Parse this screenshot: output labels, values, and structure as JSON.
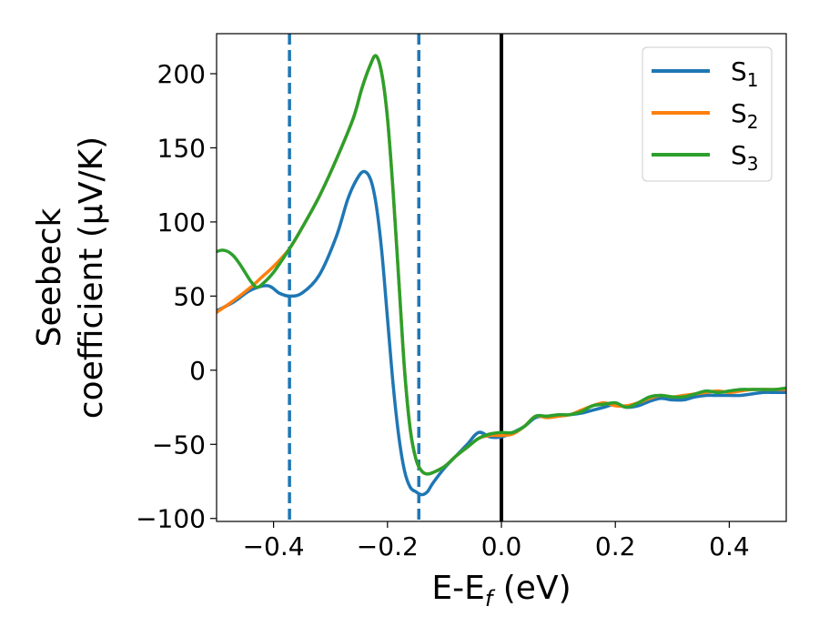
{
  "chart_data": {
    "type": "line",
    "xlabel": "E-E",
    "xlabel_sub": "f",
    "xlabel_unit": " (eV)",
    "ylabel_line1": "Seebeck",
    "ylabel_line2": "coefficient  (μV/K)",
    "xlim": [
      -0.5,
      0.5
    ],
    "ylim": [
      -102,
      227
    ],
    "xticks": [
      -0.4,
      -0.2,
      0.0,
      0.2,
      0.4
    ],
    "xtick_labels": [
      "−0.4",
      "−0.2",
      "0.0",
      "0.2",
      "0.4"
    ],
    "yticks": [
      -100,
      -50,
      0,
      50,
      100,
      150,
      200
    ],
    "ytick_labels": [
      "−100",
      "−50",
      "0",
      "50",
      "100",
      "150",
      "200"
    ],
    "grid": false,
    "legend_position": "top-right",
    "vlines": [
      {
        "x": -0.372,
        "style": "dashed",
        "color": "#1f77b4"
      },
      {
        "x": -0.145,
        "style": "dashed",
        "color": "#1f77b4"
      },
      {
        "x": 0.0,
        "style": "solid",
        "color": "#000000"
      }
    ],
    "series": [
      {
        "name": "S",
        "sub": "1",
        "color": "#1f77b4",
        "x": [
          -0.5,
          -0.47,
          -0.44,
          -0.41,
          -0.39,
          -0.372,
          -0.35,
          -0.32,
          -0.29,
          -0.27,
          -0.255,
          -0.242,
          -0.23,
          -0.22,
          -0.21,
          -0.2,
          -0.19,
          -0.18,
          -0.17,
          -0.16,
          -0.15,
          -0.14,
          -0.13,
          -0.12,
          -0.1,
          -0.08,
          -0.06,
          -0.04,
          -0.02,
          0.0,
          0.02,
          0.04,
          0.06,
          0.08,
          0.1,
          0.12,
          0.14,
          0.16,
          0.18,
          0.2,
          0.22,
          0.24,
          0.26,
          0.28,
          0.3,
          0.32,
          0.34,
          0.36,
          0.38,
          0.4,
          0.42,
          0.44,
          0.46,
          0.48,
          0.5
        ],
        "y": [
          40,
          46,
          54,
          57,
          52,
          50,
          52,
          64,
          90,
          115,
          128,
          134,
          129,
          112,
          80,
          35,
          -10,
          -45,
          -68,
          -79,
          -82,
          -84,
          -82,
          -76,
          -66,
          -58,
          -50,
          -42,
          -45,
          -45,
          -42,
          -38,
          -32,
          -31,
          -31,
          -30,
          -29,
          -27,
          -25,
          -23,
          -25,
          -24,
          -21,
          -19,
          -20,
          -20,
          -18,
          -17,
          -17,
          -17,
          -17,
          -16,
          -15,
          -15,
          -15
        ]
      },
      {
        "name": "S",
        "sub": "2",
        "color": "#ff7f0e",
        "x": [
          -0.5,
          -0.47,
          -0.44,
          -0.42,
          -0.4,
          -0.372,
          -0.35,
          -0.32,
          -0.29,
          -0.26,
          -0.245,
          -0.23,
          -0.22,
          -0.21,
          -0.2,
          -0.19,
          -0.18,
          -0.17,
          -0.16,
          -0.15,
          -0.14,
          -0.13,
          -0.12,
          -0.1,
          -0.08,
          -0.06,
          -0.04,
          -0.02,
          0.0,
          0.02,
          0.04,
          0.06,
          0.08,
          0.1,
          0.12,
          0.14,
          0.16,
          0.18,
          0.2,
          0.22,
          0.24,
          0.26,
          0.28,
          0.3,
          0.32,
          0.34,
          0.36,
          0.38,
          0.4,
          0.42,
          0.44,
          0.46,
          0.48,
          0.5
        ],
        "y": [
          39,
          47,
          56,
          63,
          70,
          82,
          96,
          117,
          142,
          170,
          190,
          206,
          212,
          200,
          170,
          120,
          60,
          0,
          -40,
          -60,
          -68,
          -70,
          -69,
          -65,
          -58,
          -52,
          -46,
          -44,
          -44,
          -43,
          -38,
          -31,
          -32,
          -31,
          -30,
          -27,
          -24,
          -22,
          -24,
          -24,
          -22,
          -19,
          -17,
          -18,
          -17,
          -16,
          -15,
          -14,
          -15,
          -14,
          -13,
          -13,
          -13,
          -13
        ]
      },
      {
        "name": "S",
        "sub": "3",
        "color": "#2ca02c",
        "x": [
          -0.5,
          -0.49,
          -0.48,
          -0.47,
          -0.46,
          -0.45,
          -0.44,
          -0.43,
          -0.42,
          -0.4,
          -0.372,
          -0.35,
          -0.32,
          -0.29,
          -0.26,
          -0.245,
          -0.23,
          -0.22,
          -0.21,
          -0.2,
          -0.19,
          -0.18,
          -0.17,
          -0.16,
          -0.15,
          -0.14,
          -0.13,
          -0.12,
          -0.1,
          -0.08,
          -0.06,
          -0.04,
          -0.02,
          0.0,
          0.02,
          0.04,
          0.06,
          0.08,
          0.1,
          0.12,
          0.14,
          0.16,
          0.18,
          0.2,
          0.22,
          0.24,
          0.26,
          0.28,
          0.3,
          0.32,
          0.34,
          0.36,
          0.38,
          0.4,
          0.42,
          0.44,
          0.46,
          0.48,
          0.5
        ],
        "y": [
          80,
          81,
          80,
          77,
          72,
          66,
          60,
          56,
          58,
          66,
          82,
          96,
          117,
          142,
          170,
          190,
          206,
          212,
          200,
          170,
          120,
          60,
          0,
          -40,
          -60,
          -68,
          -70,
          -69,
          -65,
          -58,
          -52,
          -46,
          -43,
          -42,
          -42,
          -38,
          -31,
          -31,
          -30,
          -30,
          -28,
          -24,
          -23,
          -22,
          -25,
          -22,
          -18,
          -17,
          -18,
          -18,
          -16,
          -14,
          -15,
          -14,
          -13,
          -13,
          -13,
          -13,
          -12
        ]
      }
    ]
  }
}
